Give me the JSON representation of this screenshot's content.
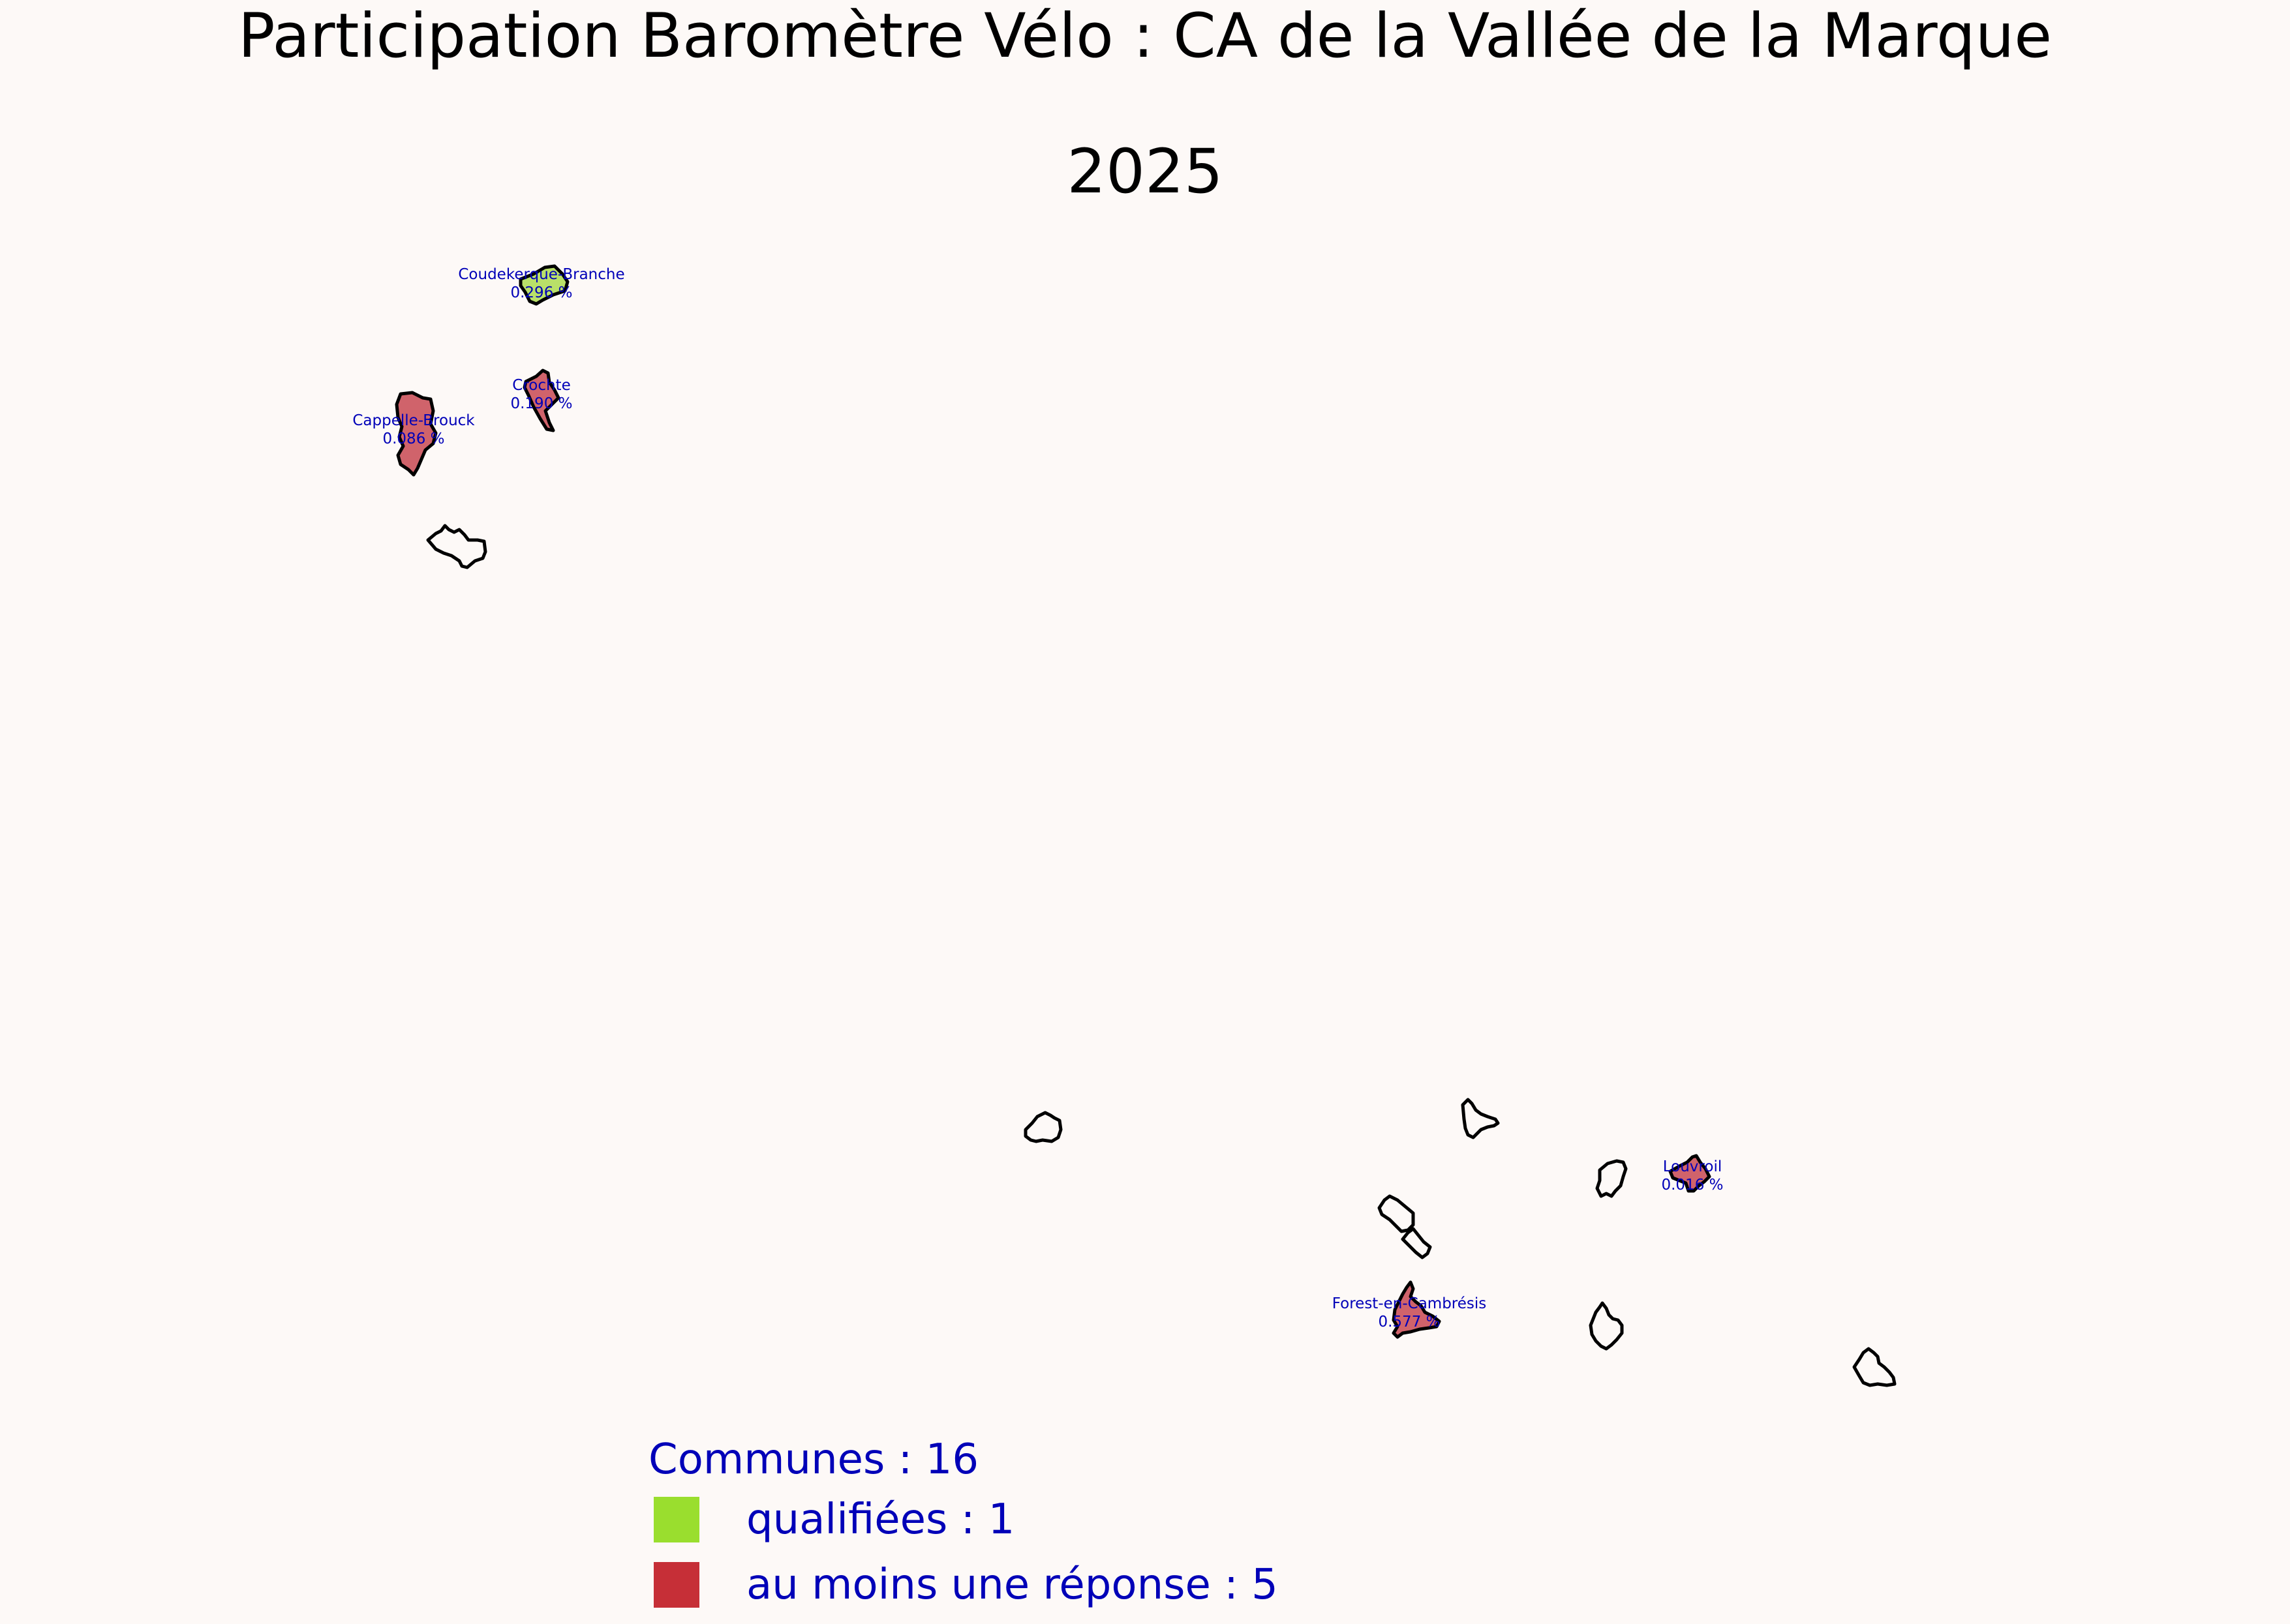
{
  "title": {
    "line1": "Participation Baromètre Vélo : CA de la Vallée de la Marque",
    "line2": "2025"
  },
  "colors": {
    "background": "#fdf9f7",
    "qualified": "#9ade2e",
    "qualified_fill": "#b9e069",
    "responded": "#c62f37",
    "responded_fill": "#d0636b",
    "outline": "#000000",
    "label": "#0000b8"
  },
  "communes": [
    {
      "id": "coudekerque",
      "name": "Coudekerque-Branche",
      "pct": "0.296 %",
      "status": "qualified"
    },
    {
      "id": "crochte",
      "name": "Crochte",
      "pct": "0.190 %",
      "status": "responded"
    },
    {
      "id": "cappelle",
      "name": "Cappelle-Brouck",
      "pct": "0.086 %",
      "status": "responded"
    },
    {
      "id": "louvroil",
      "name": "Louvroil",
      "pct": "0.016 %",
      "status": "responded"
    },
    {
      "id": "forest",
      "name": "Forest-en-Cambrésis",
      "pct": "0.577 %",
      "status": "responded"
    },
    {
      "id": "nw-outline",
      "status": "none"
    },
    {
      "id": "center-outline",
      "status": "none"
    },
    {
      "id": "se-outline-1",
      "status": "none"
    },
    {
      "id": "se-outline-2",
      "status": "none"
    },
    {
      "id": "se-outline-3",
      "status": "none"
    },
    {
      "id": "se-outline-4",
      "status": "none"
    },
    {
      "id": "se-outline-5",
      "status": "none"
    },
    {
      "id": "se-outline-6",
      "status": "none"
    }
  ],
  "legend": {
    "title": "Communes : 16",
    "items": [
      {
        "label": "qualifiées : 1",
        "color": "#9ade2e"
      },
      {
        "label": "au moins une réponse : 5",
        "color": "#c62f37"
      }
    ]
  }
}
